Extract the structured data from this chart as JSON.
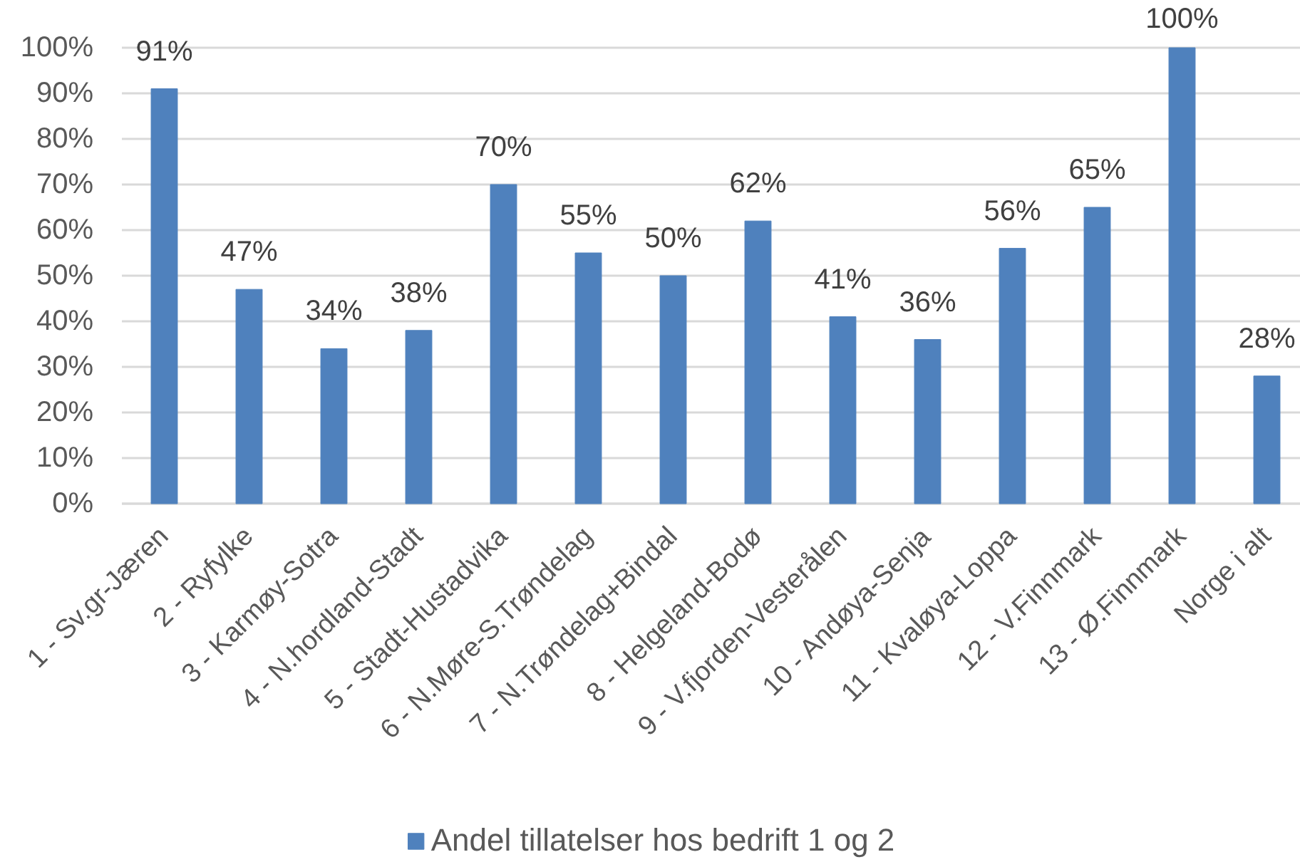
{
  "chart_data": {
    "type": "bar",
    "categories": [
      "1 - Sv.gr-Jæren",
      "2 - Ryfylke",
      "3 - Karmøy-Sotra",
      "4 - N.hordland-Stadt",
      "5 - Stadt-Hustadvika",
      "6 - N.Møre-S.Trøndelag",
      "7 - N.Trøndelag+Bindal",
      "8 - Helgeland-Bodø",
      "9 - V.fjorden-Vesterålen",
      "10 - Andøya-Senja",
      "11 - Kvaløya-Loppa",
      "12 - V.Finnmark",
      "13 - Ø.Finnmark",
      "Norge i alt"
    ],
    "series": [
      {
        "name": "Andel tillatelser hos bedrift 1 og 2",
        "color": "#4f81bd",
        "values": [
          91,
          47,
          34,
          38,
          70,
          55,
          50,
          62,
          41,
          36,
          56,
          65,
          100,
          28
        ],
        "value_labels": [
          "91%",
          "47%",
          "34%",
          "38%",
          "70%",
          "55%",
          "50%",
          "62%",
          "41%",
          "36%",
          "56%",
          "65%",
          "100%",
          "28%"
        ]
      }
    ],
    "ylim": [
      0,
      100
    ],
    "yticks": [
      {
        "value": 0,
        "label": "0%"
      },
      {
        "value": 10,
        "label": "10%"
      },
      {
        "value": 20,
        "label": "20%"
      },
      {
        "value": 30,
        "label": "30%"
      },
      {
        "value": 40,
        "label": "40%"
      },
      {
        "value": 50,
        "label": "50%"
      },
      {
        "value": 60,
        "label": "60%"
      },
      {
        "value": 70,
        "label": "70%"
      },
      {
        "value": 80,
        "label": "80%"
      },
      {
        "value": 90,
        "label": "90%"
      },
      {
        "value": 100,
        "label": "100%"
      }
    ],
    "grid": "y",
    "legend": "bottom"
  }
}
